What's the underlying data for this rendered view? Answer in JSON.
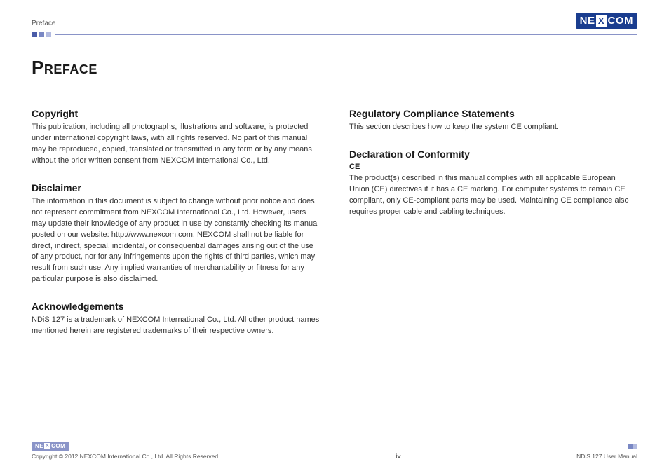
{
  "header": {
    "breadcrumb": "Preface",
    "logo_left": "NE",
    "logo_x": "X",
    "logo_right": "COM"
  },
  "title": "Preface",
  "left_column": {
    "copyright": {
      "heading": "Copyright",
      "body": "This publication, including all photographs, illustrations and software, is protected under international copyright laws, with all rights reserved. No part of this manual may be reproduced, copied, translated or transmitted in any form or by any means without the prior written consent from NEXCOM International Co., Ltd."
    },
    "disclaimer": {
      "heading": "Disclaimer",
      "body": "The information in this document is subject to change without prior notice and does not represent commitment from NEXCOM International Co., Ltd. However, users may update their knowledge of any product in use by constantly checking its manual posted on our website: http://www.nexcom.com. NEXCOM shall not be liable for direct, indirect, special, incidental, or consequential damages arising out of the use of any product, nor for any infringements upon the rights of third parties, which may result from such use. Any implied warranties of merchantability or fitness for any particular purpose is also disclaimed."
    },
    "ack": {
      "heading": "Acknowledgements",
      "body": "NDiS 127 is a trademark of NEXCOM International Co., Ltd. All other product names mentioned herein are registered trademarks of their respective owners."
    }
  },
  "right_column": {
    "reg": {
      "heading": "Regulatory Compliance Statements",
      "body": "This section describes how to keep the system CE compliant."
    },
    "decl": {
      "heading": "Declaration of Conformity",
      "sub": "CE",
      "body": "The product(s) described in this manual complies with all applicable European Union (CE) directives if it has a CE marking. For computer systems to remain CE compliant, only CE-compliant parts may be used. Maintaining CE compliance also requires proper cable and cabling techniques."
    }
  },
  "footer": {
    "logo_left": "NE",
    "logo_x": "X",
    "logo_right": "COM",
    "copyright": "Copyright © 2012 NEXCOM International Co., Ltd. All Rights Reserved.",
    "page": "iv",
    "manual": "NDiS 127 User Manual"
  },
  "colors": {
    "brand_primary": "#1a3d8f",
    "rule": "#8a94c8",
    "sq_dark": "#4a5ca8",
    "sq_mid": "#7a88c4",
    "sq_light": "#b3bbe0",
    "text": "#333333"
  }
}
